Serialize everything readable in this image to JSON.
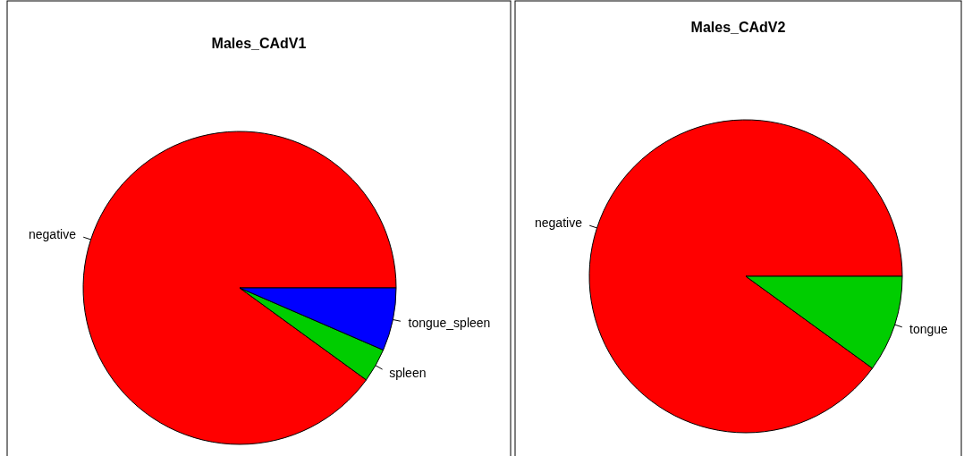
{
  "chart_data": [
    {
      "type": "pie",
      "title": "Males_CAdV1",
      "categories": [
        "negative",
        "spleen",
        "tongue_spleen"
      ],
      "values": [
        90,
        3.5,
        6.5
      ],
      "colors": [
        "#ff0000",
        "#00cd00",
        "#0000ff"
      ]
    },
    {
      "type": "pie",
      "title": "Males_CAdV2",
      "categories": [
        "negative",
        "tongue"
      ],
      "values": [
        90,
        10
      ],
      "colors": [
        "#ff0000",
        "#00cd00"
      ]
    }
  ]
}
